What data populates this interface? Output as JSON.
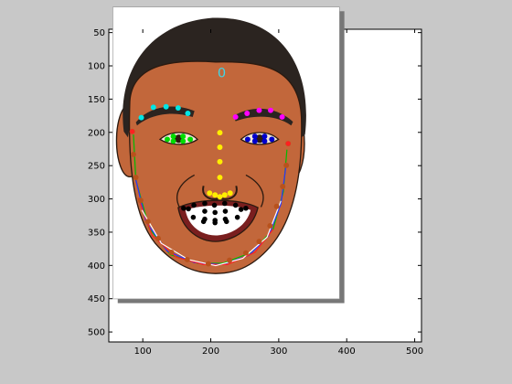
{
  "figure": {
    "background_color": "#c8c8c8",
    "axes_background_color": "#ffffff",
    "x_ticks": [
      "100",
      "200",
      "300",
      "400",
      "500"
    ],
    "y_ticks": [
      "50",
      "100",
      "150",
      "200",
      "250",
      "300",
      "350",
      "400",
      "450",
      "500"
    ],
    "xlim": [
      50,
      510
    ],
    "ylim": [
      515,
      45
    ],
    "annotation": "0"
  },
  "face": {
    "skin_color": "#c2673b",
    "hair_color": "#2b2420",
    "lip_color": "#7a1f1f",
    "teeth_color": "#ffffff"
  },
  "landmarks": {
    "colors": {
      "left_brow": "#00e5e5",
      "right_brow": "#ff00ff",
      "left_eye": "#00dd00",
      "right_eye": "#0000cc",
      "nose": "#ffee00",
      "mouth": "#000000",
      "jaw": "#b8521c"
    },
    "left_brow": [
      [
        127,
        197
      ],
      [
        147,
        180
      ],
      [
        168,
        179
      ],
      [
        188,
        181
      ],
      [
        204,
        190
      ]
    ],
    "right_brow": [
      [
        283,
        196
      ],
      [
        302,
        190
      ],
      [
        322,
        185
      ],
      [
        341,
        185
      ],
      [
        360,
        196
      ]
    ],
    "left_eye": [
      [
        170,
        233
      ],
      [
        180,
        228
      ],
      [
        196,
        228
      ],
      [
        208,
        233
      ],
      [
        196,
        236
      ],
      [
        180,
        236
      ]
    ],
    "right_eye": [
      [
        303,
        233
      ],
      [
        315,
        228
      ],
      [
        331,
        228
      ],
      [
        343,
        233
      ],
      [
        331,
        236
      ],
      [
        315,
        236
      ]
    ],
    "nose": [
      [
        257,
        222
      ],
      [
        257,
        246
      ],
      [
        257,
        270
      ],
      [
        257,
        296
      ],
      [
        240,
        322
      ],
      [
        249,
        325
      ],
      [
        257,
        328
      ],
      [
        265,
        325
      ],
      [
        274,
        322
      ]
    ],
    "mouth": [
      [
        197,
        347
      ],
      [
        214,
        342
      ],
      [
        232,
        339
      ],
      [
        248,
        342
      ],
      [
        265,
        339
      ],
      [
        283,
        342
      ],
      [
        300,
        347
      ],
      [
        286,
        362
      ],
      [
        268,
        369
      ],
      [
        249,
        371
      ],
      [
        230,
        369
      ],
      [
        213,
        362
      ],
      [
        205,
        348
      ],
      [
        232,
        352
      ],
      [
        249,
        354
      ],
      [
        266,
        352
      ],
      [
        292,
        349
      ],
      [
        266,
        365
      ],
      [
        249,
        367
      ],
      [
        232,
        365
      ]
    ],
    "jaw": [
      [
        112,
        220
      ],
      [
        114,
        258
      ],
      [
        118,
        296
      ],
      [
        126,
        334
      ],
      [
        138,
        369
      ],
      [
        155,
        397
      ],
      [
        177,
        420
      ],
      [
        203,
        432
      ],
      [
        238,
        439
      ],
      [
        273,
        433
      ],
      [
        300,
        421
      ],
      [
        322,
        402
      ],
      [
        340,
        376
      ],
      [
        351,
        344
      ],
      [
        361,
        311
      ],
      [
        367,
        276
      ],
      [
        370,
        240
      ]
    ],
    "jaw_red_tips": [
      [
        112,
        220
      ],
      [
        370,
        240
      ]
    ]
  },
  "contours": [
    {
      "color": "#00bb00",
      "points": [
        [
          114,
          225
        ],
        [
          118,
          300
        ],
        [
          140,
          380
        ],
        [
          175,
          424
        ],
        [
          220,
          438
        ],
        [
          262,
          438
        ],
        [
          310,
          420
        ],
        [
          345,
          382
        ],
        [
          362,
          320
        ],
        [
          368,
          250
        ]
      ]
    },
    {
      "color": "#3030ff",
      "points": [
        [
          118,
          300
        ],
        [
          135,
          370
        ],
        [
          170,
          418
        ],
        [
          215,
          437
        ],
        [
          262,
          440
        ],
        [
          305,
          425
        ],
        [
          338,
          392
        ],
        [
          358,
          340
        ],
        [
          366,
          280
        ]
      ]
    },
    {
      "color": "#ff2020",
      "points": [
        [
          122,
          330
        ],
        [
          145,
          392
        ],
        [
          185,
          428
        ],
        [
          230,
          440
        ],
        [
          270,
          440
        ],
        [
          315,
          420
        ],
        [
          345,
          382
        ]
      ]
    },
    {
      "color": "#ffffff",
      "points": [
        [
          128,
          350
        ],
        [
          160,
          405
        ],
        [
          205,
          432
        ],
        [
          250,
          442
        ],
        [
          295,
          430
        ],
        [
          335,
          395
        ],
        [
          358,
          335
        ]
      ]
    }
  ]
}
